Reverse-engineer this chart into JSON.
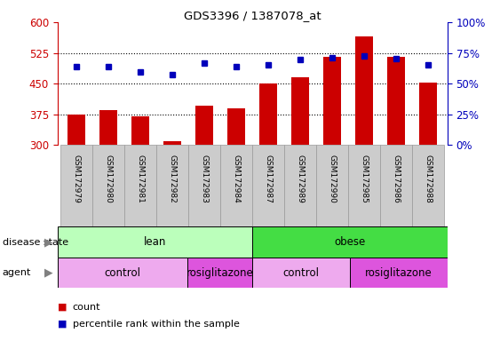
{
  "title": "GDS3396 / 1387078_at",
  "samples": [
    "GSM172979",
    "GSM172980",
    "GSM172981",
    "GSM172982",
    "GSM172983",
    "GSM172984",
    "GSM172987",
    "GSM172989",
    "GSM172990",
    "GSM172985",
    "GSM172986",
    "GSM172988"
  ],
  "bar_values": [
    375,
    385,
    370,
    310,
    395,
    390,
    450,
    465,
    515,
    565,
    515,
    452
  ],
  "percentile_values": [
    492,
    492,
    478,
    472,
    500,
    492,
    495,
    508,
    513,
    518,
    510,
    495
  ],
  "bar_bottom": 300,
  "ylim_left": [
    300,
    600
  ],
  "ylim_right": [
    0,
    100
  ],
  "yticks_left": [
    300,
    375,
    450,
    525,
    600
  ],
  "yticks_right": [
    0,
    25,
    50,
    75,
    100
  ],
  "bar_color": "#cc0000",
  "dot_color": "#0000bb",
  "disease_state_labels": [
    {
      "label": "lean",
      "start": 0,
      "end": 6,
      "color": "#bbffbb"
    },
    {
      "label": "obese",
      "start": 6,
      "end": 12,
      "color": "#44dd44"
    }
  ],
  "agent_labels": [
    {
      "label": "control",
      "start": 0,
      "end": 4,
      "color": "#eeaaee"
    },
    {
      "label": "rosiglitazone",
      "start": 4,
      "end": 6,
      "color": "#dd55dd"
    },
    {
      "label": "control",
      "start": 6,
      "end": 9,
      "color": "#eeaaee"
    },
    {
      "label": "rosiglitazone",
      "start": 9,
      "end": 12,
      "color": "#dd55dd"
    }
  ],
  "legend_count_color": "#cc0000",
  "legend_dot_color": "#0000bb",
  "tick_color_left": "#cc0000",
  "tick_color_right": "#0000bb",
  "label_bg_color": "#cccccc",
  "label_border_color": "#999999"
}
